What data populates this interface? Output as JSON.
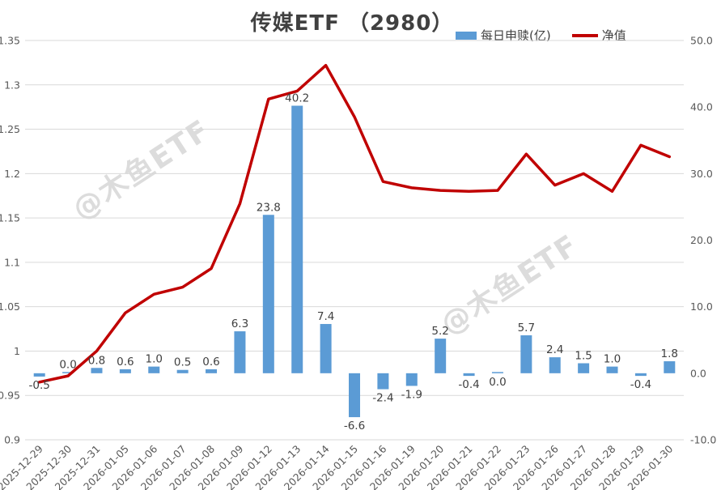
{
  "chart_data": {
    "type": "combo",
    "title": "传媒ETF （2980）",
    "categories": [
      "2025-12-29",
      "2025-12-30",
      "2025-12-31",
      "2026-01-05",
      "2026-01-06",
      "2026-01-07",
      "2026-01-08",
      "2026-01-09",
      "2026-01-12",
      "2026-01-13",
      "2026-01-14",
      "2026-01-15",
      "2026-01-16",
      "2026-01-19",
      "2026-01-20",
      "2026-01-21",
      "2026-01-22",
      "2026-01-23",
      "2026-01-26",
      "2026-01-27",
      "2026-01-28",
      "2026-01-29",
      "2026-01-30"
    ],
    "series": [
      {
        "name": "每日申赎(亿)",
        "type": "bar",
        "axis": "right",
        "color": "#5B9BD5",
        "values": [
          -0.5,
          0.0,
          0.8,
          0.6,
          1.0,
          0.5,
          0.6,
          6.3,
          23.8,
          40.2,
          7.4,
          -6.6,
          -2.4,
          -1.9,
          5.2,
          -0.4,
          0.0,
          5.7,
          2.4,
          1.5,
          1.0,
          -0.4,
          1.8
        ],
        "labels": [
          "-0.5",
          "0.0",
          "0.8",
          "0.6",
          "1.0",
          "0.5",
          "0.6",
          "6.3",
          "23.8",
          "40.2",
          "7.4",
          "-6.6",
          "-2.4",
          "-1.9",
          "5.2",
          "-0.4",
          "0.0",
          "5.7",
          "2.4",
          "1.5",
          "1.0",
          "-0.4",
          "1.8"
        ],
        "label_sides": [
          "below",
          "above",
          "above",
          "above",
          "above",
          "above",
          "above",
          "above",
          "above",
          "above",
          "above",
          "below",
          "below",
          "below",
          "above",
          "below",
          "below",
          "above",
          "above",
          "above",
          "above",
          "below",
          "above"
        ]
      },
      {
        "name": "净值",
        "type": "line",
        "axis": "left",
        "color": "#C00000",
        "values": [
          0.965,
          0.972,
          1.0,
          1.043,
          1.064,
          1.072,
          1.093,
          1.166,
          1.284,
          1.293,
          1.322,
          1.264,
          1.191,
          1.184,
          1.181,
          1.18,
          1.181,
          1.222,
          1.187,
          1.2,
          1.18,
          1.232,
          1.219
        ]
      }
    ],
    "left_axis": {
      "min": 0.9,
      "max": 1.35,
      "tick_values": [
        1.35,
        1.3,
        1.25,
        1.2,
        1.15,
        1.1,
        1.05,
        1.0,
        0.95,
        0.9
      ],
      "tick_labels": [
        "1.35",
        "1.3",
        "1.25",
        "1.2",
        "1.15",
        "1.1",
        "1.05",
        "1",
        "0.95",
        "0.9"
      ]
    },
    "right_axis": {
      "min": -10,
      "max": 50,
      "tick_values": [
        50,
        40,
        30,
        20,
        10,
        0,
        -10
      ],
      "tick_labels": [
        "50.0",
        "40.0",
        "30.0",
        "20.0",
        "10.0",
        "0.0",
        "-10.0"
      ]
    },
    "grid": true,
    "legend_position": "top-right",
    "colors": {
      "bar": "#5B9BD5",
      "line": "#C00000",
      "grid": "#D9D9D9",
      "title": "#404040",
      "axis_text": "#595959",
      "bar_label": "#404040"
    }
  },
  "watermark": {
    "text": "@木鱼ETF",
    "color": "#D9D9D9"
  }
}
